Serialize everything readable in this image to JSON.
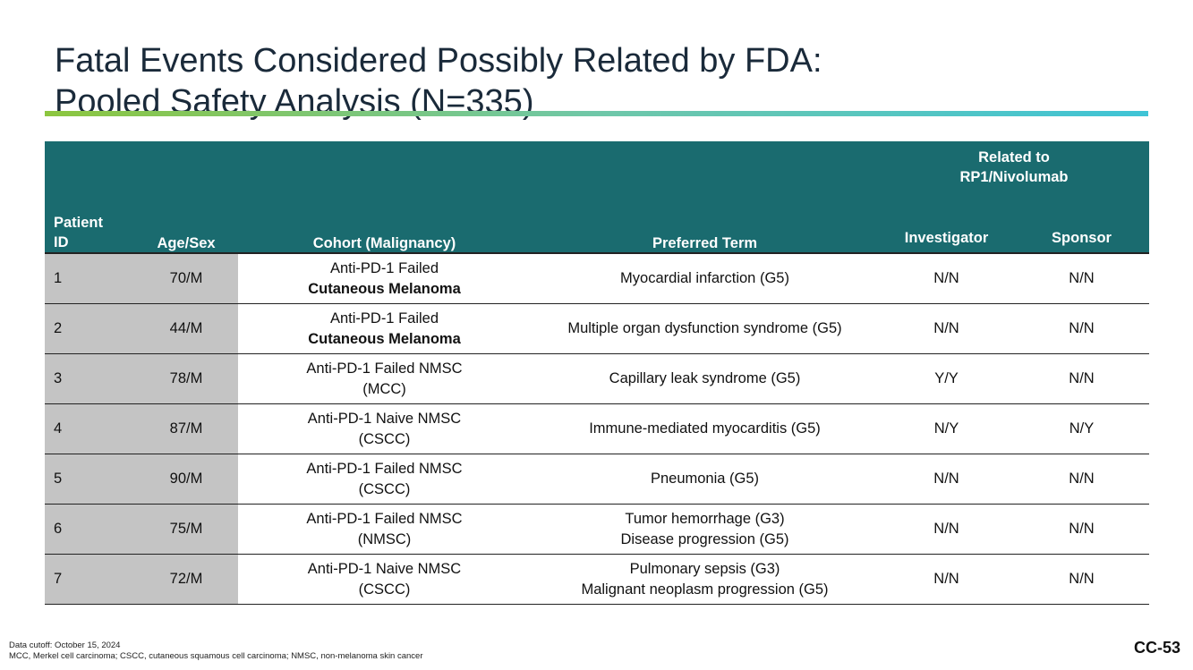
{
  "title": {
    "line1": "Fatal Events Considered Possibly Related by FDA:",
    "line2": "Pooled Safety Analysis (N=335)"
  },
  "colors": {
    "header_bg": "#1a6b6f",
    "id_col_bg": "#c4c4c4",
    "rule_gradient": [
      "#8cc63f",
      "#3fc4d6"
    ]
  },
  "table": {
    "group_header": {
      "line1": "Related to",
      "line2": "RP1/Nivolumab"
    },
    "headers": {
      "patient_id_line1": "Patient",
      "patient_id_line2": "ID",
      "age_sex": "Age/Sex",
      "cohort": "Cohort (Malignancy)",
      "preferred_term": "Preferred Term",
      "investigator": "Investigator",
      "sponsor": "Sponsor"
    },
    "rows": [
      {
        "id": "1",
        "age_sex": "70/M",
        "cohort_line1": "Anti-PD-1 Failed",
        "cohort_line2": "Cutaneous Melanoma",
        "term_line1": "Myocardial infarction (G5)",
        "term_line2": "",
        "investigator": "N/N",
        "sponsor": "N/N"
      },
      {
        "id": "2",
        "age_sex": "44/M",
        "cohort_line1": "Anti-PD-1 Failed",
        "cohort_line2": "Cutaneous Melanoma",
        "term_line1": "Multiple organ dysfunction syndrome (G5)",
        "term_line2": "",
        "investigator": "N/N",
        "sponsor": "N/N"
      },
      {
        "id": "3",
        "age_sex": "78/M",
        "cohort_line1": "Anti-PD-1 Failed NMSC",
        "cohort_line2": "(MCC)",
        "term_line1": "Capillary leak syndrome (G5)",
        "term_line2": "",
        "investigator": "Y/Y",
        "sponsor": "N/N"
      },
      {
        "id": "4",
        "age_sex": "87/M",
        "cohort_line1": "Anti-PD-1 Naive NMSC",
        "cohort_line2": "(CSCC)",
        "term_line1": "Immune-mediated myocarditis (G5)",
        "term_line2": "",
        "investigator": "N/Y",
        "sponsor": "N/Y"
      },
      {
        "id": "5",
        "age_sex": "90/M",
        "cohort_line1": "Anti-PD-1 Failed NMSC",
        "cohort_line2": "(CSCC)",
        "term_line1": "Pneumonia (G5)",
        "term_line2": "",
        "investigator": "N/N",
        "sponsor": "N/N"
      },
      {
        "id": "6",
        "age_sex": "75/M",
        "cohort_line1": "Anti-PD-1 Failed NMSC",
        "cohort_line2": "(NMSC)",
        "term_line1": "Tumor hemorrhage (G3)",
        "term_line2": "Disease progression (G5)",
        "investigator": "N/N",
        "sponsor": "N/N"
      },
      {
        "id": "7",
        "age_sex": "72/M",
        "cohort_line1": "Anti-PD-1 Naive NMSC",
        "cohort_line2": "(CSCC)",
        "term_line1": "Pulmonary sepsis (G3)",
        "term_line2": "Malignant neoplasm progression (G5)",
        "investigator": "N/N",
        "sponsor": "N/N"
      }
    ]
  },
  "footnotes": {
    "line1": "Data cutoff: October 15, 2024",
    "line2": "MCC, Merkel cell carcinoma; CSCC, cutaneous squamous cell carcinoma; NMSC, non-melanoma skin cancer"
  },
  "slide_number": "CC-53"
}
